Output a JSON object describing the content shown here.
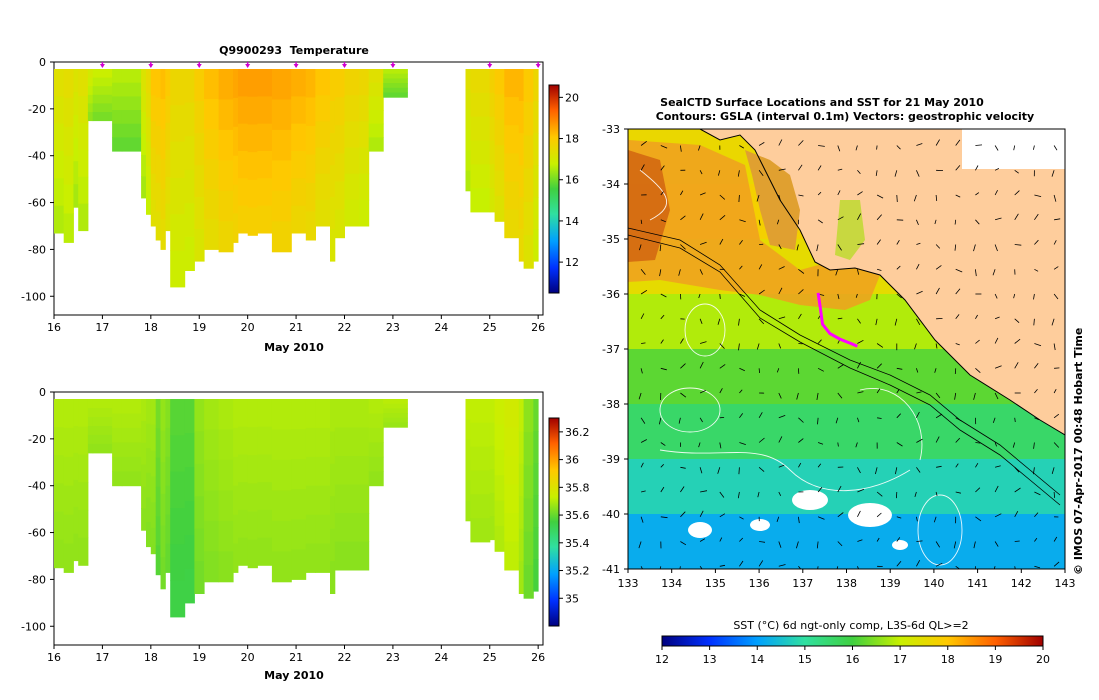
{
  "chart_data": [
    {
      "type": "heatmap",
      "title": "Q9900293  Temperature",
      "xlabel": "May 2010",
      "ylabel": "",
      "xlim": [
        16,
        26.1
      ],
      "ylim": [
        -108,
        0
      ],
      "x_ticks": [
        "16",
        "17",
        "18",
        "19",
        "20",
        "21",
        "22",
        "23",
        "24",
        "25",
        "26"
      ],
      "y_ticks": [
        "0",
        "-20",
        "-40",
        "-60",
        "-80",
        "-100"
      ],
      "profile_markers": [
        17,
        18,
        19,
        20,
        21,
        22,
        23,
        25,
        26
      ],
      "colorbar": {
        "min": 10.5,
        "max": 20.6,
        "ticks": [
          "12",
          "14",
          "16",
          "18",
          "20"
        ]
      },
      "profiles": [
        {
          "x0": 16.0,
          "x1": 16.2,
          "depth": -73,
          "value": 17.3
        },
        {
          "x0": 16.2,
          "x1": 16.4,
          "depth": -77,
          "value": 17.4
        },
        {
          "x0": 16.4,
          "x1": 16.5,
          "depth": -62,
          "value": 17.2
        },
        {
          "x0": 16.5,
          "x1": 16.7,
          "depth": -72,
          "value": 17.3
        },
        {
          "x0": 16.7,
          "x1": 16.8,
          "depth": -25,
          "value": 17.0
        },
        {
          "x0": 16.8,
          "x1": 17.2,
          "depth": -25,
          "value": 16.8
        },
        {
          "x0": 17.2,
          "x1": 17.4,
          "depth": -38,
          "value": 16.6
        },
        {
          "x0": 17.4,
          "x1": 17.8,
          "depth": -38,
          "value": 16.6
        },
        {
          "x0": 17.8,
          "x1": 17.9,
          "depth": -58,
          "value": 17.2
        },
        {
          "x0": 17.9,
          "x1": 18.0,
          "depth": -65,
          "value": 17.5
        },
        {
          "x0": 18.0,
          "x1": 18.1,
          "depth": -70,
          "value": 18.1
        },
        {
          "x0": 18.1,
          "x1": 18.2,
          "depth": -76,
          "value": 18.1
        },
        {
          "x0": 18.2,
          "x1": 18.3,
          "depth": -80,
          "value": 18.2
        },
        {
          "x0": 18.3,
          "x1": 18.4,
          "depth": -72,
          "value": 18.0
        },
        {
          "x0": 18.4,
          "x1": 18.7,
          "depth": -96,
          "value": 17.6
        },
        {
          "x0": 18.7,
          "x1": 18.9,
          "depth": -89,
          "value": 17.6
        },
        {
          "x0": 18.9,
          "x1": 19.1,
          "depth": -85,
          "value": 17.9
        },
        {
          "x0": 19.1,
          "x1": 19.4,
          "depth": -80,
          "value": 18.2
        },
        {
          "x0": 19.4,
          "x1": 19.7,
          "depth": -81,
          "value": 18.4
        },
        {
          "x0": 19.7,
          "x1": 19.8,
          "depth": -77,
          "value": 18.5
        },
        {
          "x0": 19.8,
          "x1": 20.0,
          "depth": -73,
          "value": 18.6
        },
        {
          "x0": 20.0,
          "x1": 20.2,
          "depth": -74,
          "value": 18.6
        },
        {
          "x0": 20.2,
          "x1": 20.5,
          "depth": -73,
          "value": 18.6
        },
        {
          "x0": 20.5,
          "x1": 20.9,
          "depth": -81,
          "value": 18.5
        },
        {
          "x0": 20.9,
          "x1": 21.2,
          "depth": -73,
          "value": 18.4
        },
        {
          "x0": 21.2,
          "x1": 21.4,
          "depth": -76,
          "value": 18.3
        },
        {
          "x0": 21.4,
          "x1": 21.7,
          "depth": -70,
          "value": 18.1
        },
        {
          "x0": 21.7,
          "x1": 21.8,
          "depth": -85,
          "value": 17.9
        },
        {
          "x0": 21.8,
          "x1": 22.0,
          "depth": -75,
          "value": 17.9
        },
        {
          "x0": 22.0,
          "x1": 22.3,
          "depth": -70,
          "value": 17.7
        },
        {
          "x0": 22.3,
          "x1": 22.5,
          "depth": -70,
          "value": 17.6
        },
        {
          "x0": 22.5,
          "x1": 22.8,
          "depth": -38,
          "value": 17.3
        },
        {
          "x0": 22.8,
          "x1": 23.3,
          "depth": -15,
          "value": 16.6
        },
        {
          "x0": 24.5,
          "x1": 24.6,
          "depth": -55,
          "value": 17.3
        },
        {
          "x0": 24.6,
          "x1": 25.0,
          "depth": -64,
          "value": 17.5
        },
        {
          "x0": 25.0,
          "x1": 25.1,
          "depth": -64,
          "value": 17.8
        },
        {
          "x0": 25.1,
          "x1": 25.3,
          "depth": -68,
          "value": 18.0
        },
        {
          "x0": 25.3,
          "x1": 25.6,
          "depth": -75,
          "value": 18.3
        },
        {
          "x0": 25.6,
          "x1": 25.7,
          "depth": -85,
          "value": 18.3
        },
        {
          "x0": 25.7,
          "x1": 25.9,
          "depth": -88,
          "value": 18.0
        },
        {
          "x0": 25.9,
          "x1": 26.0,
          "depth": -85,
          "value": 17.6
        }
      ]
    },
    {
      "type": "heatmap",
      "title": "",
      "xlabel": "May 2010",
      "ylabel": "",
      "xlim": [
        16,
        26.1
      ],
      "ylim": [
        -108,
        0
      ],
      "x_ticks": [
        "16",
        "17",
        "18",
        "19",
        "20",
        "21",
        "22",
        "23",
        "24",
        "25",
        "26"
      ],
      "y_ticks": [
        "0",
        "-20",
        "-40",
        "-60",
        "-80",
        "-100"
      ],
      "colorbar": {
        "min": 34.8,
        "max": 36.3,
        "ticks": [
          "35",
          "35.2",
          "35.4",
          "35.6",
          "35.8",
          "36",
          "36.2"
        ]
      },
      "profiles": [
        {
          "x0": 16.0,
          "x1": 16.2,
          "depth": -75,
          "value": 35.7
        },
        {
          "x0": 16.2,
          "x1": 16.4,
          "depth": -77,
          "value": 35.7
        },
        {
          "x0": 16.4,
          "x1": 16.5,
          "depth": -72,
          "value": 35.7
        },
        {
          "x0": 16.5,
          "x1": 16.7,
          "depth": -74,
          "value": 35.7
        },
        {
          "x0": 16.7,
          "x1": 16.8,
          "depth": -26,
          "value": 35.7
        },
        {
          "x0": 16.8,
          "x1": 17.2,
          "depth": -26,
          "value": 35.7
        },
        {
          "x0": 17.2,
          "x1": 17.4,
          "depth": -40,
          "value": 35.7
        },
        {
          "x0": 17.4,
          "x1": 17.8,
          "depth": -40,
          "value": 35.7
        },
        {
          "x0": 17.8,
          "x1": 17.9,
          "depth": -59,
          "value": 35.69
        },
        {
          "x0": 17.9,
          "x1": 18.0,
          "depth": -66,
          "value": 35.68
        },
        {
          "x0": 18.0,
          "x1": 18.1,
          "depth": -69,
          "value": 35.68
        },
        {
          "x0": 18.1,
          "x1": 18.2,
          "depth": -78,
          "value": 35.62
        },
        {
          "x0": 18.2,
          "x1": 18.3,
          "depth": -84,
          "value": 35.66
        },
        {
          "x0": 18.3,
          "x1": 18.4,
          "depth": -77,
          "value": 35.64
        },
        {
          "x0": 18.4,
          "x1": 18.7,
          "depth": -96,
          "value": 35.58
        },
        {
          "x0": 18.7,
          "x1": 18.9,
          "depth": -90,
          "value": 35.58
        },
        {
          "x0": 18.9,
          "x1": 19.1,
          "depth": -86,
          "value": 35.66
        },
        {
          "x0": 19.1,
          "x1": 19.4,
          "depth": -81,
          "value": 35.68
        },
        {
          "x0": 19.4,
          "x1": 19.7,
          "depth": -81,
          "value": 35.69
        },
        {
          "x0": 19.7,
          "x1": 19.8,
          "depth": -77,
          "value": 35.7
        },
        {
          "x0": 19.8,
          "x1": 20.0,
          "depth": -74,
          "value": 35.7
        },
        {
          "x0": 20.0,
          "x1": 20.2,
          "depth": -75,
          "value": 35.7
        },
        {
          "x0": 20.2,
          "x1": 20.5,
          "depth": -74,
          "value": 35.7
        },
        {
          "x0": 20.5,
          "x1": 20.9,
          "depth": -81,
          "value": 35.7
        },
        {
          "x0": 20.9,
          "x1": 21.2,
          "depth": -80,
          "value": 35.7
        },
        {
          "x0": 21.2,
          "x1": 21.4,
          "depth": -77,
          "value": 35.7
        },
        {
          "x0": 21.4,
          "x1": 21.7,
          "depth": -77,
          "value": 35.7
        },
        {
          "x0": 21.7,
          "x1": 21.8,
          "depth": -86,
          "value": 35.69
        },
        {
          "x0": 21.8,
          "x1": 22.0,
          "depth": -76,
          "value": 35.69
        },
        {
          "x0": 22.0,
          "x1": 22.3,
          "depth": -76,
          "value": 35.69
        },
        {
          "x0": 22.3,
          "x1": 22.5,
          "depth": -76,
          "value": 35.69
        },
        {
          "x0": 22.5,
          "x1": 22.8,
          "depth": -40,
          "value": 35.7
        },
        {
          "x0": 22.8,
          "x1": 23.3,
          "depth": -15,
          "value": 35.71
        },
        {
          "x0": 24.5,
          "x1": 24.6,
          "depth": -55,
          "value": 35.72
        },
        {
          "x0": 24.6,
          "x1": 25.0,
          "depth": -64,
          "value": 35.72
        },
        {
          "x0": 25.0,
          "x1": 25.1,
          "depth": -63,
          "value": 35.72
        },
        {
          "x0": 25.1,
          "x1": 25.3,
          "depth": -68,
          "value": 35.74
        },
        {
          "x0": 25.3,
          "x1": 25.6,
          "depth": -76,
          "value": 35.76
        },
        {
          "x0": 25.6,
          "x1": 25.7,
          "depth": -86,
          "value": 35.72
        },
        {
          "x0": 25.7,
          "x1": 25.9,
          "depth": -88,
          "value": 35.65
        },
        {
          "x0": 25.9,
          "x1": 26.0,
          "depth": -85,
          "value": 35.6
        }
      ]
    },
    {
      "type": "heatmap",
      "title": "SealCTD Surface Locations and SST for 21 May 2010",
      "subtitle": "Contours: GSLA (interval 0.1m) Vectors: geostrophic velocity",
      "xlabel": "",
      "ylabel": "",
      "xlim": [
        133,
        143
      ],
      "ylim": [
        -41,
        -33
      ],
      "x_ticks": [
        "133",
        "134",
        "135",
        "136",
        "137",
        "138",
        "139",
        "140",
        "141",
        "142",
        "143"
      ],
      "y_ticks": [
        "-33",
        "-34",
        "-35",
        "-36",
        "-37",
        "-38",
        "-39",
        "-40",
        "-41"
      ],
      "colorbar": {
        "label": "SST (°C) 6d ngt-only comp, L3S-6d QL>=2",
        "min": 12,
        "max": 20,
        "ticks": [
          "12",
          "13",
          "14",
          "15",
          "16",
          "17",
          "18",
          "19",
          "20"
        ],
        "orientation": "horizontal"
      },
      "credit": "© IMOS 07-Apr-2017 00:48 Hobart Time",
      "sst_bands": [
        {
          "lat": -33.5,
          "value": 17.6
        },
        {
          "lat": -34.5,
          "value": 17.8
        },
        {
          "lat": -35.5,
          "value": 17.5
        },
        {
          "lat": -36.5,
          "value": 16.8
        },
        {
          "lat": -37.5,
          "value": 16.2
        },
        {
          "lat": -38.5,
          "value": 15.6
        },
        {
          "lat": -39.5,
          "value": 14.8
        },
        {
          "lat": -40.5,
          "value": 14.2
        }
      ],
      "seal_track": [
        {
          "lon": 137.35,
          "lat": -35.98
        },
        {
          "lon": 137.4,
          "lat": -36.25
        },
        {
          "lon": 137.45,
          "lat": -36.55
        },
        {
          "lon": 137.62,
          "lat": -36.72
        },
        {
          "lon": 137.85,
          "lat": -36.82
        },
        {
          "lon": 138.1,
          "lat": -36.9
        },
        {
          "lon": 138.25,
          "lat": -36.95
        }
      ]
    }
  ]
}
